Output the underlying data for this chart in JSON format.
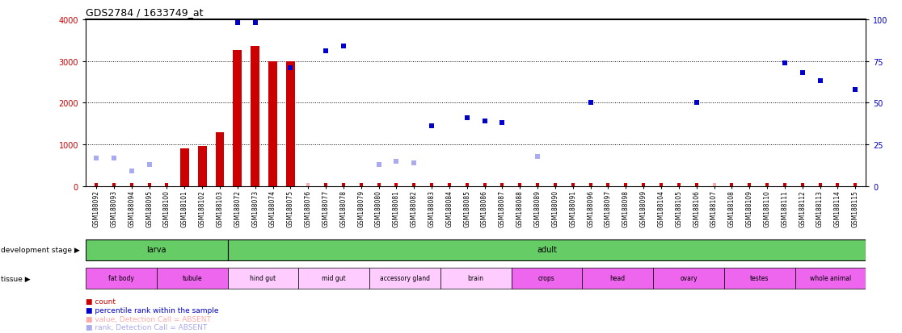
{
  "title": "GDS2784 / 1633749_at",
  "samples": [
    "GSM188092",
    "GSM188093",
    "GSM188094",
    "GSM188095",
    "GSM188100",
    "GSM188101",
    "GSM188102",
    "GSM188103",
    "GSM188072",
    "GSM188073",
    "GSM188074",
    "GSM188075",
    "GSM188076",
    "GSM188077",
    "GSM188078",
    "GSM188079",
    "GSM188080",
    "GSM188081",
    "GSM188082",
    "GSM188083",
    "GSM188084",
    "GSM188085",
    "GSM188086",
    "GSM188087",
    "GSM188088",
    "GSM188089",
    "GSM188090",
    "GSM188091",
    "GSM188096",
    "GSM188097",
    "GSM188098",
    "GSM188099",
    "GSM188104",
    "GSM188105",
    "GSM188106",
    "GSM188107",
    "GSM188108",
    "GSM188109",
    "GSM188110",
    "GSM188111",
    "GSM188112",
    "GSM188113",
    "GSM188114",
    "GSM188115"
  ],
  "count_values": [
    null,
    null,
    null,
    null,
    null,
    900,
    960,
    1300,
    3270,
    3350,
    3000,
    3000,
    null,
    null,
    null,
    null,
    null,
    null,
    null,
    null,
    null,
    null,
    null,
    null,
    null,
    null,
    null,
    null,
    null,
    null,
    null,
    null,
    null,
    null,
    null,
    null,
    null,
    null,
    null,
    null,
    null,
    null,
    null,
    null
  ],
  "count_is_absent": [
    false,
    false,
    false,
    false,
    false,
    false,
    false,
    false,
    false,
    false,
    false,
    false,
    true,
    false,
    false,
    false,
    false,
    false,
    false,
    false,
    false,
    false,
    false,
    false,
    false,
    false,
    false,
    false,
    false,
    false,
    false,
    false,
    false,
    false,
    false,
    true,
    false,
    false,
    false,
    false,
    false,
    false,
    false,
    false
  ],
  "rank_values": [
    17,
    17,
    9,
    13,
    null,
    null,
    null,
    null,
    98,
    98,
    null,
    71,
    null,
    81,
    84,
    null,
    13,
    15,
    14,
    36,
    null,
    41,
    39,
    38,
    null,
    18,
    null,
    null,
    50,
    null,
    null,
    null,
    null,
    null,
    50,
    null,
    null,
    null,
    null,
    74,
    68,
    63,
    null,
    58
  ],
  "rank_is_absent": [
    true,
    true,
    true,
    true,
    false,
    false,
    false,
    false,
    false,
    false,
    false,
    false,
    false,
    false,
    false,
    false,
    true,
    true,
    true,
    false,
    false,
    false,
    false,
    false,
    false,
    true,
    false,
    false,
    false,
    false,
    false,
    false,
    false,
    false,
    false,
    false,
    false,
    false,
    false,
    false,
    false,
    false,
    false,
    false
  ],
  "yticks_left": [
    0,
    1000,
    2000,
    3000,
    4000
  ],
  "yticks_right": [
    0,
    25,
    50,
    75,
    100
  ],
  "color_count": "#cc0000",
  "color_rank": "#0000cc",
  "color_count_absent": "#ffaaaa",
  "color_rank_absent": "#aaaaee",
  "dev_stages": [
    {
      "label": "larva",
      "start": 0,
      "end": 8
    },
    {
      "label": "adult",
      "start": 8,
      "end": 44
    }
  ],
  "tissues": [
    {
      "label": "fat body",
      "start": 0,
      "end": 4,
      "dark": true
    },
    {
      "label": "tubule",
      "start": 4,
      "end": 8,
      "dark": true
    },
    {
      "label": "hind gut",
      "start": 8,
      "end": 12,
      "dark": false
    },
    {
      "label": "mid gut",
      "start": 12,
      "end": 16,
      "dark": false
    },
    {
      "label": "accessory gland",
      "start": 16,
      "end": 20,
      "dark": false
    },
    {
      "label": "brain",
      "start": 20,
      "end": 24,
      "dark": false
    },
    {
      "label": "crops",
      "start": 24,
      "end": 28,
      "dark": true
    },
    {
      "label": "head",
      "start": 28,
      "end": 32,
      "dark": true
    },
    {
      "label": "ovary",
      "start": 32,
      "end": 36,
      "dark": true
    },
    {
      "label": "testes",
      "start": 36,
      "end": 40,
      "dark": true
    },
    {
      "label": "whole animal",
      "start": 40,
      "end": 44,
      "dark": true
    }
  ],
  "tissue_dark_color": "#ee66ee",
  "tissue_light_color": "#ffccff",
  "dev_stage_color": "#66cc66",
  "bg_color": "#e8e8e8"
}
